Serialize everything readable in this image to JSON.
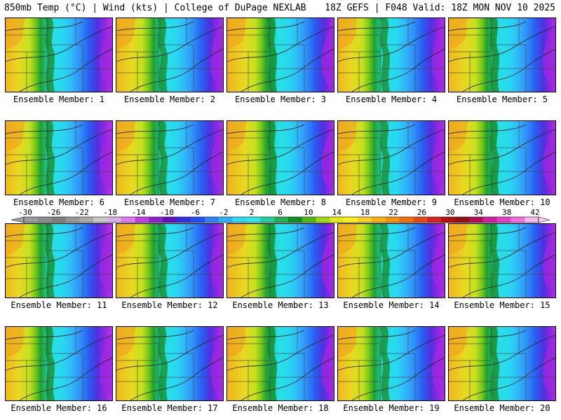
{
  "header": {
    "left": "850mb Temp (°C) | Wind (kts) | College of DuPage NEXLAB",
    "right": "18Z GEFS | F048 Valid: 18Z MON NOV 10 2025"
  },
  "panels": [
    {
      "label": "Ensemble Member: 1"
    },
    {
      "label": "Ensemble Member: 2"
    },
    {
      "label": "Ensemble Member: 3"
    },
    {
      "label": "Ensemble Member: 4"
    },
    {
      "label": "Ensemble Member: 5"
    },
    {
      "label": "Ensemble Member: 6"
    },
    {
      "label": "Ensemble Member: 7"
    },
    {
      "label": "Ensemble Member: 8"
    },
    {
      "label": "Ensemble Member: 9"
    },
    {
      "label": "Ensemble Member: 10"
    },
    {
      "label": "Ensemble Member: 11"
    },
    {
      "label": "Ensemble Member: 12"
    },
    {
      "label": "Ensemble Member: 13"
    },
    {
      "label": "Ensemble Member: 14"
    },
    {
      "label": "Ensemble Member: 15"
    },
    {
      "label": "Ensemble Member: 16"
    },
    {
      "label": "Ensemble Member: 17"
    },
    {
      "label": "Ensemble Member: 18"
    },
    {
      "label": "Ensemble Member: 19"
    },
    {
      "label": "Ensemble Member: 20"
    }
  ],
  "legend": {
    "labels": [
      "-30",
      "-26",
      "-22",
      "-18",
      "-14",
      "-10",
      "-6",
      "-2",
      "2",
      "6",
      "10",
      "14",
      "18",
      "22",
      "26",
      "30",
      "34",
      "38",
      "42"
    ],
    "colors": [
      "#9a9a9a",
      "#8c8c8c",
      "#7e7e7e",
      "#969696",
      "#aaaaaa",
      "#c8c8c8",
      "#d8b0e8",
      "#e078f0",
      "#c040e0",
      "#9020d0",
      "#6010c0",
      "#3030e0",
      "#2050f0",
      "#3080f8",
      "#30b0f8",
      "#30d8f0",
      "#30e8e0",
      "#20d0a0",
      "#20b050",
      "#109020",
      "#50b818",
      "#a0d818",
      "#e8e818",
      "#f8f018",
      "#f8d020",
      "#f8b018",
      "#f89010",
      "#f07010",
      "#e84818",
      "#d82020",
      "#b01010",
      "#901010",
      "#b01050",
      "#d020a0",
      "#e040c8",
      "#f070e0",
      "#f8b8f0"
    ]
  }
}
